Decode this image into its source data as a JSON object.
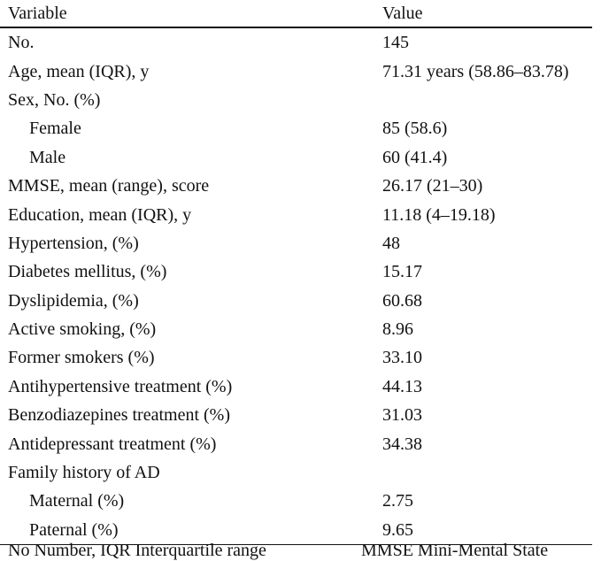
{
  "table": {
    "headers": {
      "variable": "Variable",
      "value": "Value"
    },
    "rows": [
      {
        "label": "No.",
        "value": "145",
        "indent": false
      },
      {
        "label": "Age, mean (IQR), y",
        "value": "71.31 years (58.86–83.78)",
        "indent": false
      },
      {
        "label": "Sex, No. (%)",
        "value": "",
        "indent": false
      },
      {
        "label": "Female",
        "value": "85 (58.6)",
        "indent": true
      },
      {
        "label": "Male",
        "value": "60 (41.4)",
        "indent": true
      },
      {
        "label": "MMSE, mean (range), score",
        "value": "26.17 (21–30)",
        "indent": false
      },
      {
        "label": "Education, mean (IQR), y",
        "value": "11.18 (4–19.18)",
        "indent": false
      },
      {
        "label": "Hypertension, (%)",
        "value": "48",
        "indent": false
      },
      {
        "label": "Diabetes mellitus, (%)",
        "value": "15.17",
        "indent": false
      },
      {
        "label": "Dyslipidemia, (%)",
        "value": "60.68",
        "indent": false
      },
      {
        "label": "Active smoking, (%)",
        "value": "8.96",
        "indent": false
      },
      {
        "label": "Former smokers (%)",
        "value": "33.10",
        "indent": false
      },
      {
        "label": "Antihypertensive treatment (%)",
        "value": "44.13",
        "indent": false
      },
      {
        "label": "Benzodiazepines treatment (%)",
        "value": "31.03",
        "indent": false
      },
      {
        "label": "Antidepressant treatment (%)",
        "value": "34.38",
        "indent": false
      },
      {
        "label": "Family history of AD",
        "value": "",
        "indent": false
      },
      {
        "label": "Maternal (%)",
        "value": "2.75",
        "indent": true
      },
      {
        "label": "Paternal (%)",
        "value": "9.65",
        "indent": true
      }
    ]
  },
  "footnote": {
    "left_text": "No Number, IQR Interquartile range",
    "right_text": "MMSE Mini-Mental State"
  }
}
